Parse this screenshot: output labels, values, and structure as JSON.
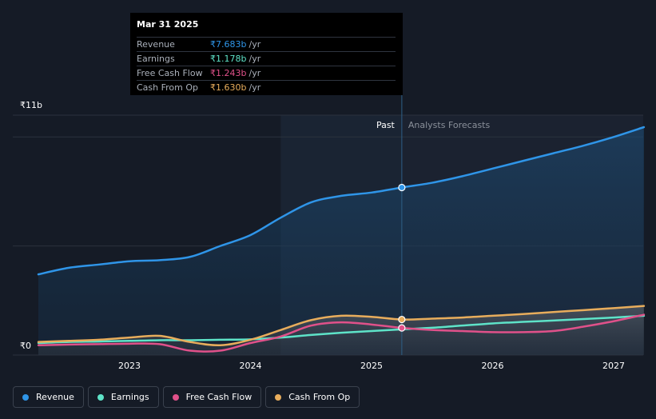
{
  "tooltip": {
    "date": "Mar 31 2025",
    "rows": [
      {
        "label": "Revenue",
        "value": "₹7.683b",
        "unit": "/yr",
        "color": "#2f95e8"
      },
      {
        "label": "Earnings",
        "value": "₹1.178b",
        "unit": "/yr",
        "color": "#5ee3c8"
      },
      {
        "label": "Free Cash Flow",
        "value": "₹1.243b",
        "unit": "/yr",
        "color": "#e0518a"
      },
      {
        "label": "Cash From Op",
        "value": "₹1.630b",
        "unit": "/yr",
        "color": "#e8ad5c"
      }
    ]
  },
  "legend": [
    {
      "label": "Revenue",
      "color": "#2f95e8"
    },
    {
      "label": "Earnings",
      "color": "#5ee3c8"
    },
    {
      "label": "Free Cash Flow",
      "color": "#e0518a"
    },
    {
      "label": "Cash From Op",
      "color": "#e8ad5c"
    }
  ],
  "chart_data": {
    "type": "line",
    "title": "",
    "xlabel": "",
    "ylabel": "",
    "y_axis_labels": {
      "top": "₹11b",
      "bottom": "₹0"
    },
    "ylim": [
      0,
      11
    ],
    "xlim": [
      2022.2,
      2027.25
    ],
    "x_ticks": [
      2023,
      2024,
      2025,
      2026,
      2027
    ],
    "x_tick_labels": [
      "2023",
      "2024",
      "2025",
      "2026",
      "2027"
    ],
    "past_label": "Past",
    "forecast_label": "Analysts Forecasts",
    "divider_x": 2025.25,
    "highlight_start_x": 2024.25,
    "series": [
      {
        "name": "Revenue",
        "color": "#2f95e8",
        "filled": true,
        "x": [
          2022.2,
          2022.5,
          2022.75,
          2023.0,
          2023.25,
          2023.5,
          2023.75,
          2024.0,
          2024.25,
          2024.5,
          2024.75,
          2025.0,
          2025.25,
          2025.5,
          2025.75,
          2026.0,
          2026.25,
          2026.5,
          2026.75,
          2027.0,
          2027.25
        ],
        "y": [
          3.7,
          4.0,
          4.15,
          4.3,
          4.35,
          4.5,
          5.0,
          5.5,
          6.3,
          7.0,
          7.3,
          7.45,
          7.683,
          7.9,
          8.2,
          8.55,
          8.9,
          9.25,
          9.6,
          10.0,
          10.45
        ]
      },
      {
        "name": "Earnings",
        "color": "#5ee3c8",
        "filled": false,
        "x": [
          2022.2,
          2022.5,
          2022.75,
          2023.0,
          2023.25,
          2023.5,
          2023.75,
          2024.0,
          2024.25,
          2024.5,
          2024.75,
          2025.0,
          2025.25,
          2025.5,
          2025.75,
          2026.0,
          2026.25,
          2026.5,
          2026.75,
          2027.0,
          2027.25
        ],
        "y": [
          0.55,
          0.6,
          0.62,
          0.65,
          0.68,
          0.68,
          0.7,
          0.72,
          0.8,
          0.92,
          1.02,
          1.1,
          1.178,
          1.25,
          1.35,
          1.45,
          1.52,
          1.58,
          1.65,
          1.72,
          1.8
        ]
      },
      {
        "name": "Free Cash Flow",
        "color": "#e0518a",
        "filled": false,
        "x": [
          2022.2,
          2022.5,
          2022.75,
          2023.0,
          2023.25,
          2023.5,
          2023.75,
          2024.0,
          2024.25,
          2024.5,
          2024.75,
          2025.0,
          2025.25,
          2025.5,
          2025.75,
          2026.0,
          2026.25,
          2026.5,
          2026.75,
          2027.0,
          2027.25
        ],
        "y": [
          0.45,
          0.48,
          0.5,
          0.52,
          0.5,
          0.2,
          0.2,
          0.55,
          0.85,
          1.35,
          1.5,
          1.4,
          1.243,
          1.15,
          1.1,
          1.05,
          1.05,
          1.1,
          1.3,
          1.55,
          1.85
        ]
      },
      {
        "name": "Cash From Op",
        "color": "#e8ad5c",
        "filled": false,
        "x": [
          2022.2,
          2022.5,
          2022.75,
          2023.0,
          2023.25,
          2023.5,
          2023.75,
          2024.0,
          2024.25,
          2024.5,
          2024.75,
          2025.0,
          2025.25,
          2025.5,
          2025.75,
          2026.0,
          2026.25,
          2026.5,
          2026.75,
          2027.0,
          2027.25
        ],
        "y": [
          0.6,
          0.65,
          0.7,
          0.8,
          0.88,
          0.6,
          0.45,
          0.7,
          1.15,
          1.6,
          1.8,
          1.75,
          1.63,
          1.67,
          1.72,
          1.8,
          1.88,
          1.97,
          2.06,
          2.15,
          2.25
        ]
      }
    ],
    "marker_x": 2025.25,
    "markers": [
      {
        "series": "Revenue",
        "y": 7.683
      },
      {
        "series": "Cash From Op",
        "y": 1.63
      },
      {
        "series": "Free Cash Flow",
        "y": 1.243
      }
    ]
  }
}
